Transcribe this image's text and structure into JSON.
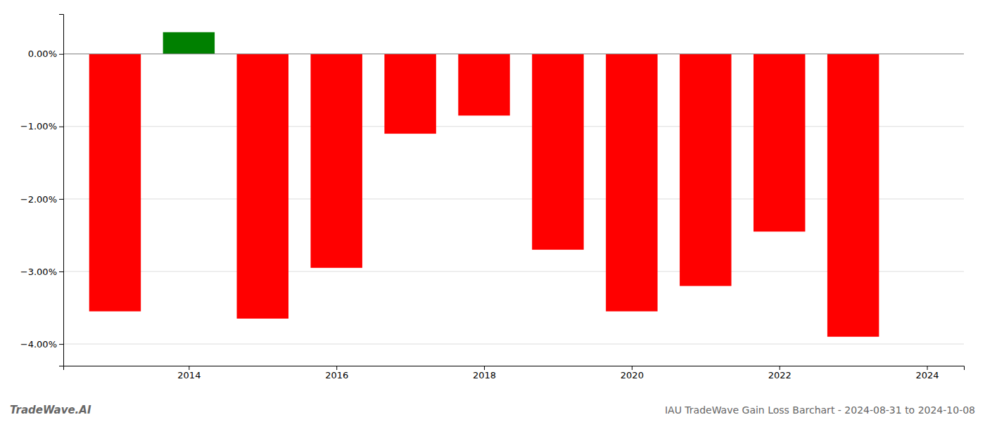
{
  "chart_data": {
    "type": "bar",
    "title": "IAU TradeWave Gain Loss Barchart - 2024-08-31 to 2024-10-08",
    "annotations": [
      "TradeWave.AI"
    ],
    "x": [
      2013,
      2014,
      2015,
      2016,
      2017,
      2018,
      2019,
      2020,
      2021,
      2022,
      2023
    ],
    "values": [
      -3.55,
      0.3,
      -3.65,
      -2.95,
      -1.1,
      -0.85,
      -2.7,
      -3.55,
      -3.2,
      -2.45,
      -3.9
    ],
    "colors": [
      "#ff0000",
      "#008000",
      "#ff0000",
      "#ff0000",
      "#ff0000",
      "#ff0000",
      "#ff0000",
      "#ff0000",
      "#ff0000",
      "#ff0000",
      "#ff0000"
    ],
    "xlim": [
      2012.3,
      2024.5
    ],
    "xticks": [
      2014,
      2016,
      2018,
      2020,
      2022,
      2024
    ],
    "ylim": [
      -4.3,
      0.55
    ],
    "yticks": [
      {
        "value": 0.0,
        "label": "0.00%"
      },
      {
        "value": -1.0,
        "label": "−1.00%"
      },
      {
        "value": -2.0,
        "label": "−2.00%"
      },
      {
        "value": -3.0,
        "label": "−3.00%"
      },
      {
        "value": -4.0,
        "label": "−4.00%"
      }
    ],
    "grid": true
  }
}
